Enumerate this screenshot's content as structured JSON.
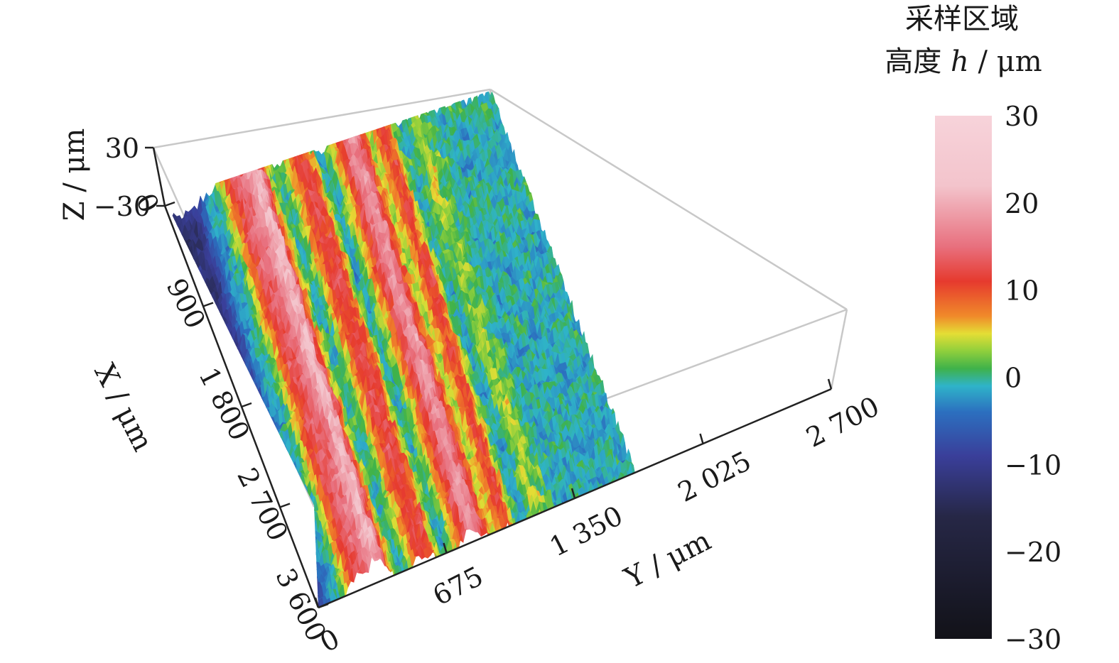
{
  "chart_data": {
    "type": "surface3d",
    "title": "",
    "colorbar": {
      "title_line1": "采样区域",
      "title_line2_prefix": "高度 ",
      "title_line2_var": "h",
      "title_line2_unit": " / μm",
      "range": [
        -30,
        30
      ],
      "ticks": [
        "30",
        "20",
        "10",
        "0",
        "−10",
        "−20",
        "−30"
      ],
      "tick_values": [
        30,
        20,
        10,
        0,
        -10,
        -20,
        -30
      ],
      "stops": [
        {
          "v": 30,
          "color": "#f7d3da"
        },
        {
          "v": 22,
          "color": "#f3c4cc"
        },
        {
          "v": 15,
          "color": "#e8707e"
        },
        {
          "v": 11,
          "color": "#e63a2e"
        },
        {
          "v": 7,
          "color": "#f08a2a"
        },
        {
          "v": 5,
          "color": "#e4de35"
        },
        {
          "v": 3,
          "color": "#8fcf3c"
        },
        {
          "v": 1,
          "color": "#3fb24a"
        },
        {
          "v": -1,
          "color": "#2fb3c9"
        },
        {
          "v": -4,
          "color": "#2c6fbf"
        },
        {
          "v": -9,
          "color": "#3a3f9a"
        },
        {
          "v": -16,
          "color": "#262746"
        },
        {
          "v": -30,
          "color": "#121218"
        }
      ]
    },
    "axes": {
      "x": {
        "label": "X / μm",
        "ticks": [
          "0",
          "900",
          "1 800",
          "2 700",
          "3 600"
        ],
        "values": [
          0,
          900,
          1800,
          2700,
          3600
        ],
        "range": [
          0,
          3600
        ]
      },
      "y": {
        "label": "Y / μm",
        "ticks": [
          "0",
          "675",
          "1 350",
          "2 025",
          "2 700"
        ],
        "values": [
          0,
          675,
          1350,
          2025,
          2700
        ],
        "range": [
          0,
          2700
        ]
      },
      "z": {
        "label": "Z / μm",
        "ticks": [
          "30",
          "−30"
        ],
        "values": [
          30,
          -30
        ],
        "range": [
          -30,
          30
        ]
      }
    },
    "surface": {
      "description_bands": [
        {
          "y_from": 0,
          "y_to": 280,
          "height": -12
        },
        {
          "y_from": 280,
          "y_to": 420,
          "height": -2
        },
        {
          "y_from": 420,
          "y_to": 480,
          "height": 4
        },
        {
          "y_from": 480,
          "y_to": 640,
          "height": 14
        },
        {
          "y_from": 640,
          "y_to": 740,
          "height": 22
        },
        {
          "y_from": 740,
          "y_to": 800,
          "height": 12
        },
        {
          "y_from": 800,
          "y_to": 880,
          "height": 4
        },
        {
          "y_from": 880,
          "y_to": 950,
          "height": -2
        },
        {
          "y_from": 950,
          "y_to": 1000,
          "height": 2
        },
        {
          "y_from": 1000,
          "y_to": 1180,
          "height": 12
        },
        {
          "y_from": 1180,
          "y_to": 1260,
          "height": 3
        },
        {
          "y_from": 1260,
          "y_to": 1330,
          "height": -3
        },
        {
          "y_from": 1330,
          "y_to": 1420,
          "height": 6
        },
        {
          "y_from": 1420,
          "y_to": 1560,
          "height": 18
        },
        {
          "y_from": 1560,
          "y_to": 1640,
          "height": 10
        },
        {
          "y_from": 1640,
          "y_to": 1720,
          "height": 2
        },
        {
          "y_from": 1720,
          "y_to": 1820,
          "height": 12
        },
        {
          "y_from": 1820,
          "y_to": 1900,
          "height": 4
        },
        {
          "y_from": 1900,
          "y_to": 2000,
          "height": -2
        },
        {
          "y_from": 2000,
          "y_to": 2100,
          "height": 4
        },
        {
          "y_from": 2100,
          "y_to": 2200,
          "height": 1
        },
        {
          "y_from": 2200,
          "y_to": 2700,
          "height": -1
        }
      ]
    }
  }
}
